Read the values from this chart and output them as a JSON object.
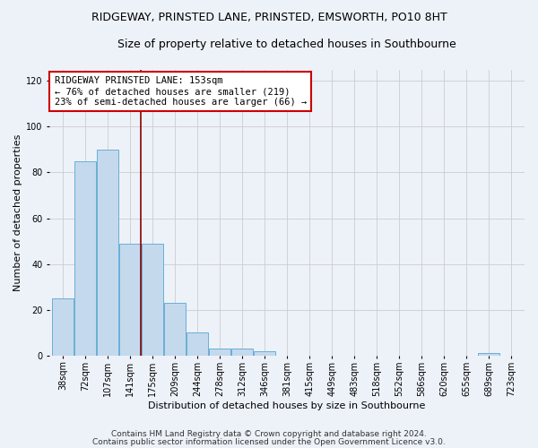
{
  "title1": "RIDGEWAY, PRINSTED LANE, PRINSTED, EMSWORTH, PO10 8HT",
  "title2": "Size of property relative to detached houses in Southbourne",
  "xlabel": "Distribution of detached houses by size in Southbourne",
  "ylabel": "Number of detached properties",
  "bar_labels": [
    "38sqm",
    "72sqm",
    "107sqm",
    "141sqm",
    "175sqm",
    "209sqm",
    "244sqm",
    "278sqm",
    "312sqm",
    "346sqm",
    "381sqm",
    "415sqm",
    "449sqm",
    "483sqm",
    "518sqm",
    "552sqm",
    "586sqm",
    "620sqm",
    "655sqm",
    "689sqm",
    "723sqm"
  ],
  "bar_values": [
    25,
    85,
    90,
    49,
    49,
    23,
    10,
    3,
    3,
    2,
    0,
    0,
    0,
    0,
    0,
    0,
    0,
    0,
    0,
    1,
    0
  ],
  "bar_color": "#c5d9ed",
  "bar_edge_color": "#6aaed6",
  "grid_color": "#cccccc",
  "vline_color": "#8b0000",
  "vline_pos": 3.48,
  "annotation_text": "RIDGEWAY PRINSTED LANE: 153sqm\n← 76% of detached houses are smaller (219)\n23% of semi-detached houses are larger (66) →",
  "annotation_box_color": "white",
  "annotation_box_edge": "#cc0000",
  "ylim": [
    0,
    125
  ],
  "yticks": [
    0,
    20,
    40,
    60,
    80,
    100,
    120
  ],
  "footer1": "Contains HM Land Registry data © Crown copyright and database right 2024.",
  "footer2": "Contains public sector information licensed under the Open Government Licence v3.0.",
  "bg_color": "#edf2f9",
  "title1_fontsize": 9,
  "title2_fontsize": 9,
  "annotation_fontsize": 7.5,
  "tick_fontsize": 7,
  "ylabel_fontsize": 8,
  "xlabel_fontsize": 8,
  "footer_fontsize": 6.5
}
